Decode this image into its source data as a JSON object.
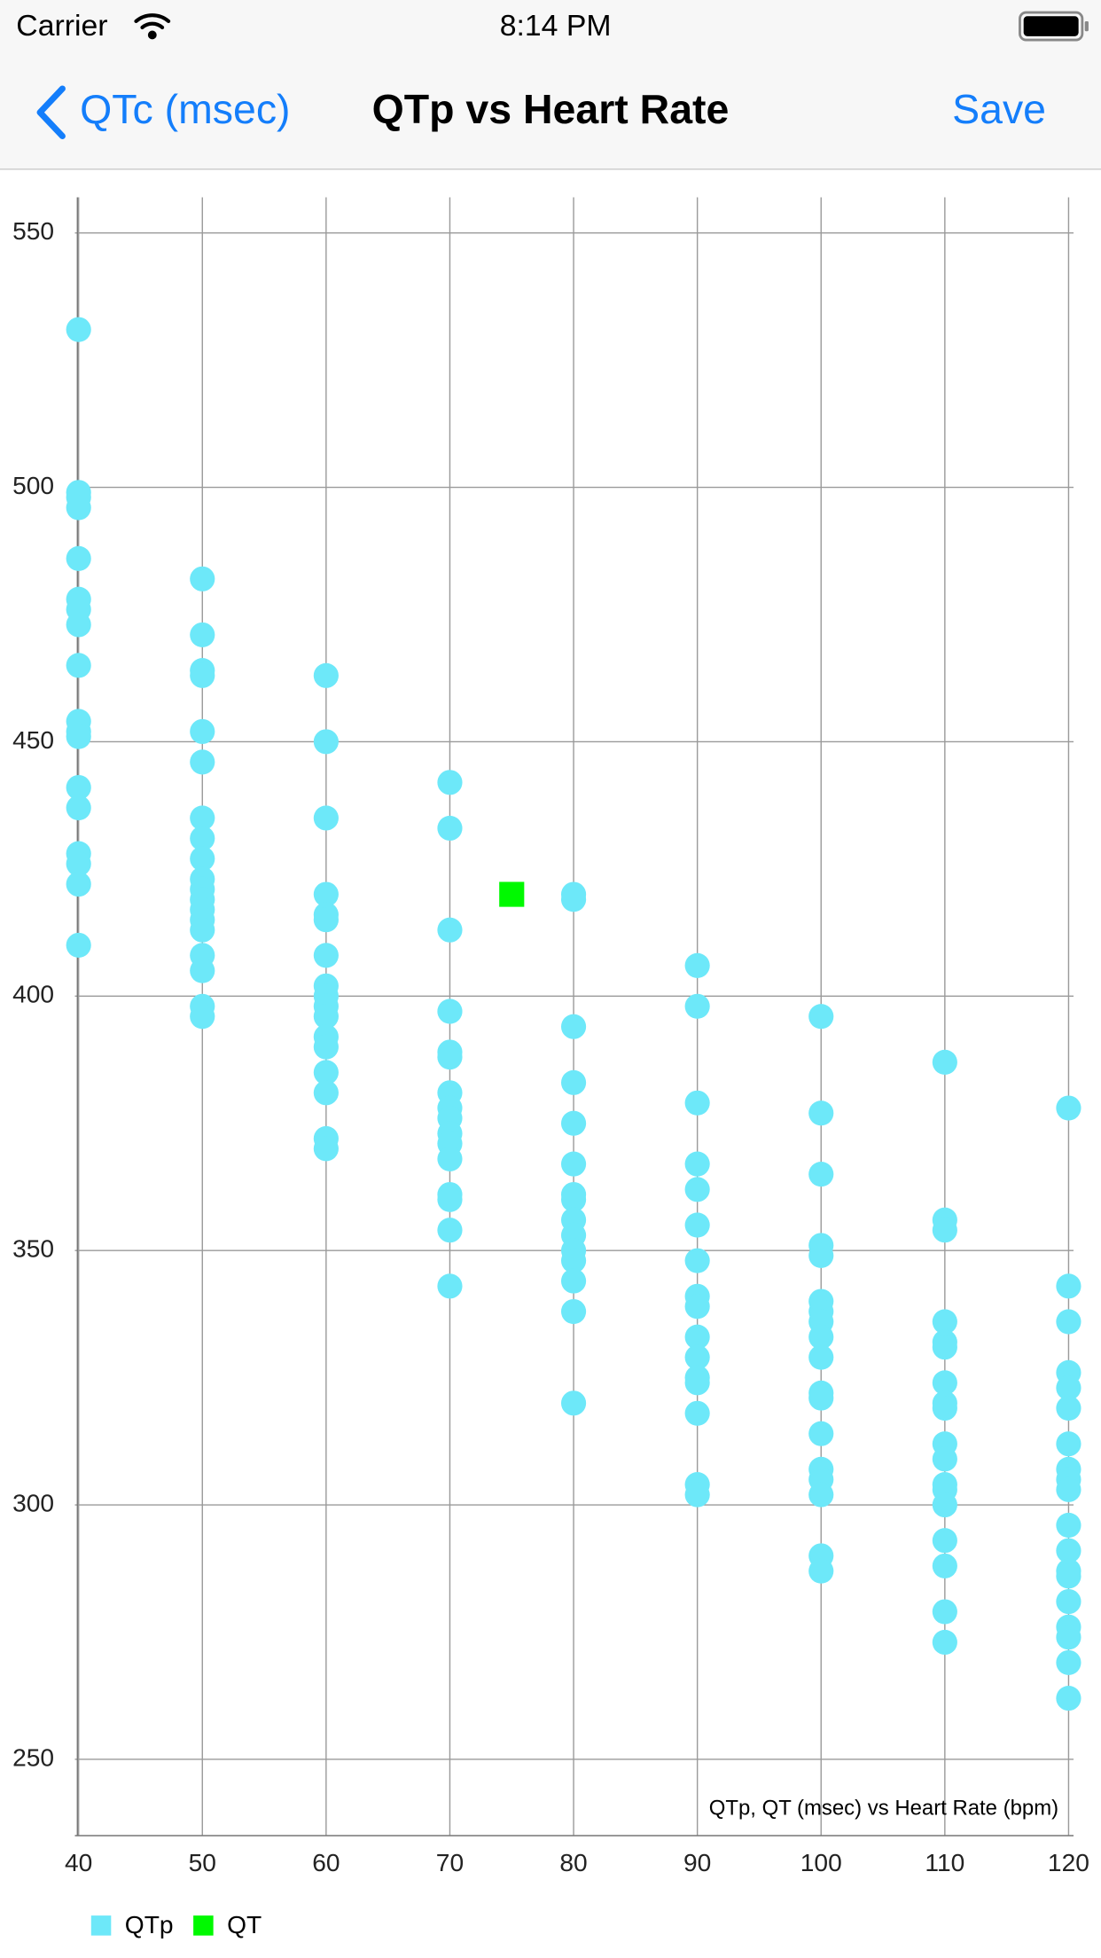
{
  "status_bar": {
    "carrier": "Carrier",
    "time": "8:14 PM"
  },
  "nav": {
    "back": "QTc (msec)",
    "title": "QTp vs Heart Rate",
    "action": "Save"
  },
  "chart_data": {
    "type": "scatter",
    "annotation": "QTp, QT (msec) vs Heart Rate (bpm)",
    "xlim": [
      39.7,
      120.4
    ],
    "ylim": [
      235,
      557
    ],
    "xticks": [
      40,
      50,
      60,
      70,
      80,
      90,
      100,
      110,
      120
    ],
    "yticks": [
      250,
      300,
      350,
      400,
      450,
      500,
      550
    ],
    "grid": true,
    "legend": "bottom-left",
    "series": [
      {
        "name": "QTp",
        "color": "#6de8f9",
        "marker": "circle",
        "x": [
          40,
          40,
          40,
          40,
          40,
          40,
          40,
          40,
          40,
          40,
          40,
          40,
          40,
          40,
          40,
          40,
          40,
          40,
          50,
          50,
          50,
          50,
          50,
          50,
          50,
          50,
          50,
          50,
          50,
          50,
          50,
          50,
          50,
          50,
          50,
          50,
          50,
          60,
          60,
          60,
          60,
          60,
          60,
          60,
          60,
          60,
          60,
          60,
          60,
          60,
          60,
          60,
          60,
          60,
          70,
          70,
          70,
          70,
          70,
          70,
          70,
          70,
          70,
          70,
          70,
          70,
          70,
          70,
          70,
          70,
          80,
          80,
          80,
          80,
          80,
          80,
          80,
          80,
          80,
          80,
          80,
          80,
          80,
          80,
          80,
          90,
          90,
          90,
          90,
          90,
          90,
          90,
          90,
          90,
          90,
          90,
          90,
          90,
          90,
          90,
          90,
          100,
          100,
          100,
          100,
          100,
          100,
          100,
          100,
          100,
          100,
          100,
          100,
          100,
          100,
          100,
          100,
          100,
          100,
          110,
          110,
          110,
          110,
          110,
          110,
          110,
          110,
          110,
          110,
          110,
          110,
          110,
          110,
          110,
          110,
          110,
          110,
          120,
          120,
          120,
          120,
          120,
          120,
          120,
          120,
          120,
          120,
          120,
          120,
          120,
          120,
          120,
          120,
          120,
          120,
          120
        ],
        "y": [
          531,
          499,
          498,
          496,
          486,
          478,
          476,
          473,
          465,
          454,
          452,
          451,
          441,
          437,
          428,
          426,
          422,
          410,
          482,
          471,
          464,
          463,
          452,
          446,
          435,
          431,
          427,
          423,
          421,
          419,
          417,
          415,
          413,
          408,
          405,
          398,
          396,
          463,
          450,
          435,
          420,
          416,
          415,
          408,
          402,
          400,
          398,
          396,
          392,
          390,
          385,
          381,
          372,
          370,
          442,
          433,
          413,
          397,
          389,
          388,
          381,
          378,
          376,
          373,
          371,
          368,
          361,
          360,
          354,
          343,
          420,
          419,
          394,
          383,
          375,
          367,
          361,
          360,
          356,
          353,
          350,
          348,
          344,
          338,
          320,
          406,
          398,
          379,
          367,
          362,
          355,
          348,
          341,
          339,
          333,
          329,
          325,
          324,
          318,
          304,
          302,
          396,
          377,
          365,
          351,
          349,
          340,
          338,
          336,
          333,
          329,
          322,
          321,
          314,
          307,
          305,
          302,
          290,
          287,
          387,
          356,
          354,
          336,
          332,
          331,
          324,
          320,
          319,
          312,
          309,
          304,
          303,
          300,
          293,
          288,
          279,
          273,
          378,
          343,
          336,
          326,
          323,
          319,
          312,
          307,
          305,
          303,
          296,
          291,
          287,
          286,
          281,
          276,
          274,
          269,
          262
        ]
      },
      {
        "name": "QT",
        "color": "#00f900",
        "marker": "square",
        "x": [
          75
        ],
        "y": [
          420
        ]
      }
    ]
  }
}
